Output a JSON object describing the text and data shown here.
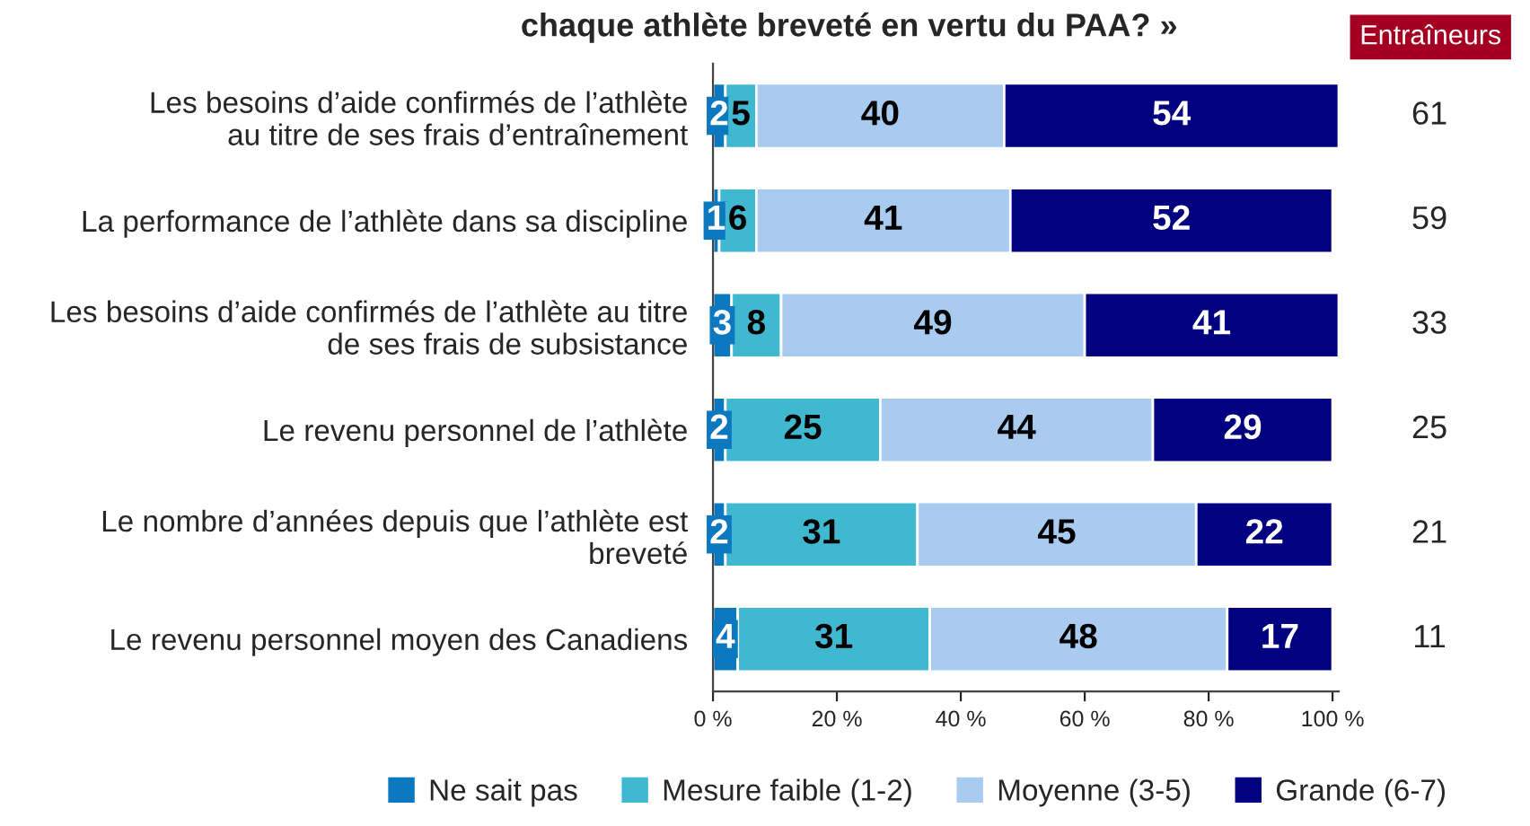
{
  "chart_data": {
    "type": "bar",
    "orientation": "horizontal",
    "stacked": true,
    "title": "chaque athlète breveté en vertu du PAA? »",
    "categories": [
      "Les besoins d’aide confirmés de l’athlète\nau titre de ses frais d’entraînement",
      "La performance de l’athlète dans sa discipline",
      "Les besoins d’aide confirmés de l’athlète au titre\nde ses frais de subsistance",
      "Le revenu personnel de l’athlète",
      "Le nombre d’années depuis que l’athlète est\nbreveté",
      "Le revenu personnel moyen des Canadiens"
    ],
    "series": [
      {
        "name": "Ne sait pas",
        "color": "#0b78c0",
        "values": [
          2,
          1,
          3,
          2,
          2,
          4
        ]
      },
      {
        "name": "Mesure faible (1-2)",
        "color": "#40b8d0",
        "values": [
          5,
          6,
          8,
          25,
          31,
          31
        ]
      },
      {
        "name": "Moyenne (3-5)",
        "color": "#a9cbef",
        "values": [
          40,
          41,
          49,
          44,
          45,
          48
        ]
      },
      {
        "name": "Grande (6-7)",
        "color": "#000080",
        "values": [
          54,
          52,
          41,
          29,
          22,
          17
        ]
      }
    ],
    "data_labels": true,
    "xlim": [
      0,
      101
    ],
    "xticks": [
      {
        "value": 0,
        "label": "0 %"
      },
      {
        "value": 20,
        "label": "20 %"
      },
      {
        "value": 40,
        "label": "40 %"
      },
      {
        "value": 60,
        "label": "60 %"
      },
      {
        "value": 80,
        "label": "80 %"
      },
      {
        "value": 100,
        "label": "100 %"
      }
    ],
    "grid": false,
    "legend": "bottom",
    "annotations": [
      "Entraîneurs",
      "61",
      "59",
      "33",
      "25",
      "21",
      "11"
    ]
  }
}
